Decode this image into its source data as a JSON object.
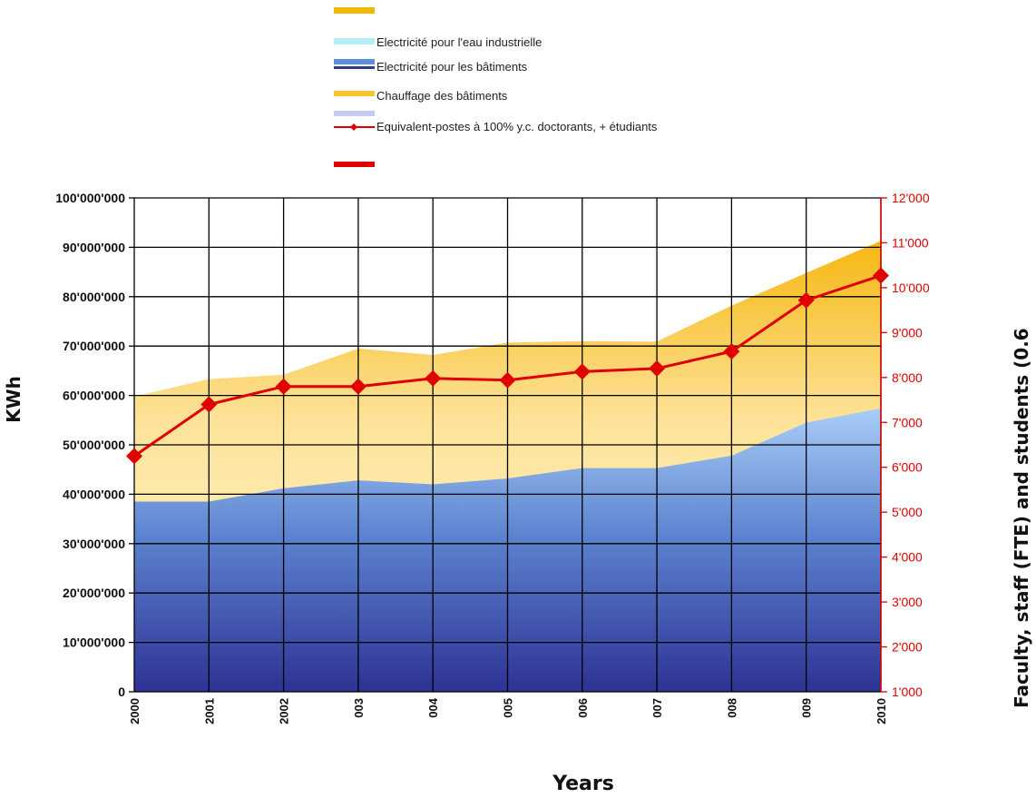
{
  "chart_data": {
    "type": "area",
    "categories": [
      "2000",
      "2001",
      "2002",
      "2003",
      "2004",
      "2005",
      "2006",
      "2007",
      "2008",
      "2009",
      "2010"
    ],
    "x_tick_labels": [
      "2000",
      "2001",
      "2002",
      "003",
      "004",
      "005",
      "006",
      "007",
      "008",
      "009",
      "2010"
    ],
    "series": [
      {
        "name": "Electricité pour l'eau industrielle",
        "kind": "area",
        "axis": "left",
        "stack_top": [
          38500000,
          38500000,
          41200000,
          42800000,
          42000000,
          43200000,
          45300000,
          45300000,
          47800000,
          54500000,
          57400000
        ],
        "color": "#b3f0f5"
      },
      {
        "name": "Electricité pour les bâtiments",
        "kind": "area",
        "axis": "left",
        "stack_top": [
          38500000,
          38500000,
          41200000,
          42800000,
          42000000,
          43200000,
          45300000,
          45300000,
          47800000,
          54500000,
          57400000
        ],
        "color": "#5b8fd6"
      },
      {
        "name": "Chauffage des bâtiments",
        "kind": "area",
        "axis": "left",
        "stack_top": [
          59800000,
          63300000,
          64200000,
          69500000,
          68200000,
          70700000,
          71000000,
          70900000,
          78200000,
          84800000,
          91300000
        ],
        "color": "#f7c530"
      },
      {
        "name": "Equivalent-postes à 100% y.c. doctorants, + étudiants",
        "kind": "line",
        "axis": "right",
        "values": [
          6250,
          7400,
          7800,
          7800,
          7980,
          7940,
          8130,
          8200,
          8580,
          9720,
          10270
        ],
        "color": "#e00000"
      }
    ],
    "y_left": {
      "label": "KWh",
      "min": 0,
      "max": 100000000,
      "step": 10000000,
      "tick_labels": [
        "0",
        "10'000'000",
        "20'000'000",
        "30'000'000",
        "40'000'000",
        "50'000'000",
        "60'000'000",
        "70'000'000",
        "80'000'000",
        "90'000'000",
        "100'000'000"
      ]
    },
    "y_right": {
      "label": "Faculty, staff (FTE) and students (0.6",
      "min": 1000,
      "max": 12000,
      "step": 1000,
      "tick_labels": [
        "1'000",
        "2'000",
        "3'000",
        "4'000",
        "5'000",
        "6'000",
        "7'000",
        "8'000",
        "9'000",
        "10'000",
        "11'000",
        "12'000"
      ]
    },
    "xlabel": "Years",
    "grid": true,
    "legend_position": "top"
  }
}
